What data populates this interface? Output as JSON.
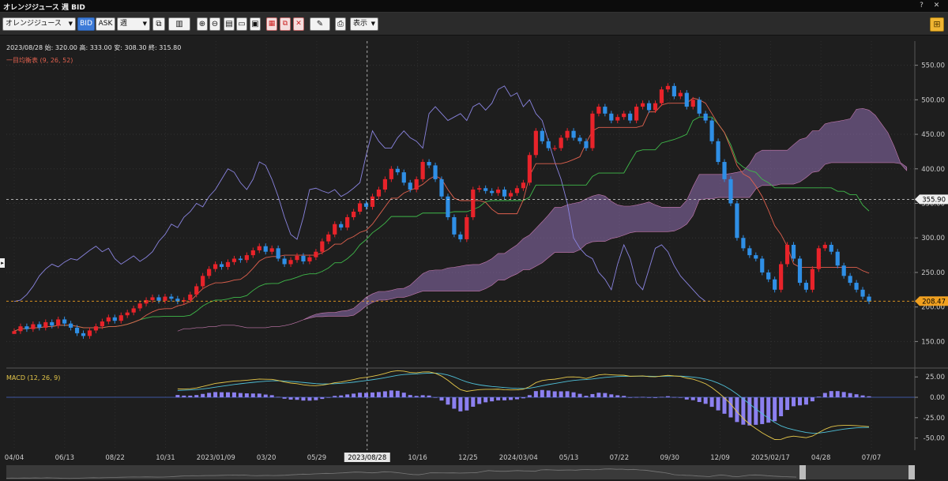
{
  "window": {
    "title": "オレンジジュース 週 BID",
    "help": "?",
    "close": "✕"
  },
  "toolbar": {
    "instrument": "オレンジジュース",
    "bid_label": "BID",
    "ask_label": "ASK",
    "period": "週",
    "display_label": "表示",
    "arrow": "▼"
  },
  "info": {
    "date": "2023/08/28",
    "open_label": "始:",
    "open": "320.00",
    "high_label": "高:",
    "high": "333.00",
    "low_label": "安:",
    "low": "308.30",
    "close_label": "終:",
    "close": "315.80"
  },
  "indicator1": {
    "label": "一目均衡表 (9, 26, 52)"
  },
  "indicator2": {
    "label": "MACD (12, 26, 9)"
  },
  "colors": {
    "up": "#e8232a",
    "down": "#2f8fe6",
    "cloud": "#8f6fb0",
    "tenkan": "#e0614e",
    "kijun": "#3fb94a",
    "chikou": "#8a84e0",
    "macd": "#e6c84a",
    "signal": "#4fc0d8",
    "hist": "#8c80f0"
  },
  "chart_data": {
    "type": "candlestick",
    "ylim": [
      115,
      585
    ],
    "y_ticks": [
      "550.00",
      "500.00",
      "450.00",
      "400.00",
      "350.00",
      "300.00",
      "250.00",
      "200.00",
      "150.00"
    ],
    "x_labels": [
      "04/04",
      "06/13",
      "08/22",
      "10/31",
      "2023/01/09",
      "03/20",
      "05/29",
      "2023/08/28",
      "10/16",
      "12/25",
      "2024/03/04",
      "05/13",
      "07/22",
      "09/30",
      "12/09",
      "2025/02/17",
      "04/28",
      "07/07"
    ],
    "crosshair_date": "2023/08/28",
    "crosshair_price": "355.90",
    "last_price": "208.47",
    "closes": [
      165,
      172,
      168,
      175,
      170,
      178,
      173,
      182,
      176,
      170,
      162,
      158,
      166,
      172,
      179,
      185,
      180,
      188,
      192,
      198,
      205,
      210,
      214,
      209,
      215,
      212,
      208,
      210,
      218,
      230,
      245,
      255,
      262,
      258,
      265,
      270,
      268,
      275,
      282,
      288,
      280,
      285,
      270,
      262,
      268,
      274,
      266,
      272,
      280,
      295,
      305,
      320,
      315,
      330,
      338,
      350,
      345,
      360,
      370,
      385,
      400,
      395,
      380,
      370,
      385,
      410,
      405,
      385,
      360,
      330,
      305,
      298,
      330,
      370,
      372,
      368,
      365,
      370,
      360,
      365,
      372,
      380,
      420,
      455,
      440,
      430,
      430,
      445,
      455,
      445,
      440,
      430,
      480,
      490,
      480,
      470,
      475,
      480,
      470,
      490,
      495,
      485,
      495,
      515,
      520,
      505,
      510,
      490,
      500,
      480,
      470,
      440,
      410,
      385,
      350,
      300,
      285,
      275,
      270,
      250,
      240,
      225,
      262,
      290,
      270,
      235,
      225,
      255,
      285,
      290,
      280,
      260,
      245,
      235,
      225,
      215,
      208
    ],
    "macd_range": [
      -62,
      32
    ],
    "macd_ticks": [
      "25.00",
      "0.00",
      "-25.00",
      "-50.00"
    ]
  }
}
